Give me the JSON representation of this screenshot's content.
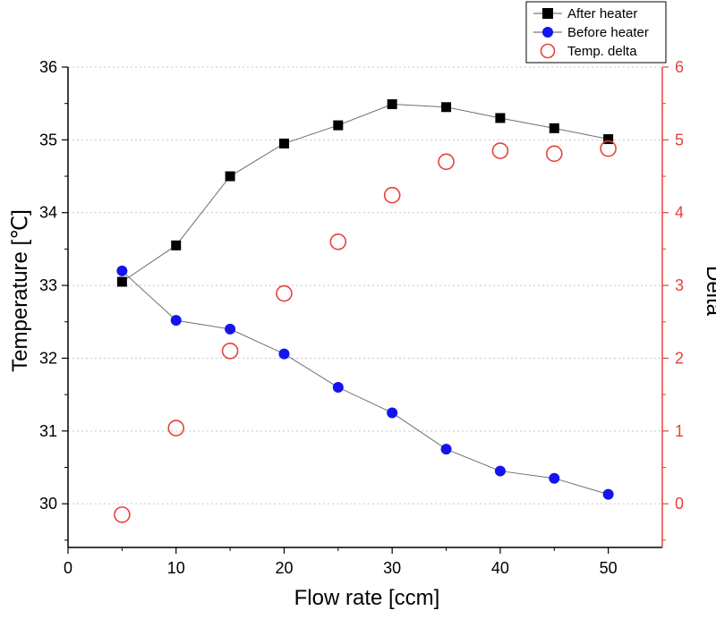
{
  "chart_data": {
    "type": "scatter",
    "xlabel": "Flow rate [ccm]",
    "ylabel": "Temperature [℃]",
    "y2label": "Delta",
    "xlim": [
      0,
      55
    ],
    "ylim": [
      29.4,
      36
    ],
    "y2lim": [
      -0.6,
      6
    ],
    "xticks": [
      "0",
      "10",
      "20",
      "30",
      "40",
      "50"
    ],
    "yticks": [
      "30",
      "31",
      "32",
      "33",
      "34",
      "35",
      "36"
    ],
    "y2ticks": [
      "0",
      "1",
      "2",
      "3",
      "4",
      "5",
      "6"
    ],
    "grid": "horizontal dotted",
    "legend_position": "top-right",
    "series": [
      {
        "name": "After heater",
        "axis": "left",
        "marker": "square",
        "color": "#000000",
        "line": true,
        "x": [
          5,
          10,
          15,
          20,
          25,
          30,
          35,
          40,
          45,
          50
        ],
        "values": [
          33.05,
          33.55,
          34.5,
          34.95,
          35.2,
          35.49,
          35.45,
          35.3,
          35.16,
          35.01
        ]
      },
      {
        "name": "Before heater",
        "axis": "left",
        "marker": "circle",
        "color": "#1414f0",
        "line": true,
        "x": [
          5,
          10,
          15,
          20,
          25,
          30,
          35,
          40,
          45,
          50
        ],
        "values": [
          33.2,
          32.52,
          32.4,
          32.06,
          31.6,
          31.25,
          30.75,
          30.45,
          30.35,
          30.13
        ]
      },
      {
        "name": "Temp. delta",
        "axis": "right",
        "marker": "open-circle",
        "color": "#e8413c",
        "line": false,
        "x": [
          5,
          10,
          15,
          20,
          25,
          30,
          35,
          40,
          45,
          50
        ],
        "values": [
          -0.15,
          1.04,
          2.1,
          2.89,
          3.6,
          4.24,
          4.7,
          4.85,
          4.81,
          4.88
        ]
      }
    ]
  }
}
